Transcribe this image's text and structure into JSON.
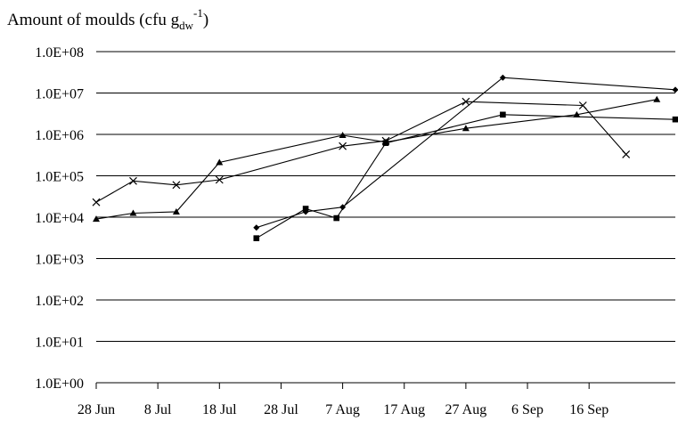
{
  "chart_data": {
    "type": "line",
    "title": "",
    "ylabel": "Amount of moulds (cfu g",
    "ylabel_sub": "dw",
    "ylabel_sup": "-1",
    "ylabel_close": ")",
    "yscale": "log",
    "ylim": [
      1,
      100000000
    ],
    "xlim": [
      "2007-06-28",
      "2007-09-30"
    ],
    "grid": "horizontal",
    "y_ticks": [
      {
        "value": 1,
        "label": "1.0E+00"
      },
      {
        "value": 10,
        "label": "1.0E+01"
      },
      {
        "value": 100,
        "label": "1.0E+02"
      },
      {
        "value": 1000,
        "label": "1.0E+03"
      },
      {
        "value": 10000,
        "label": "1.0E+04"
      },
      {
        "value": 100000,
        "label": "1.0E+05"
      },
      {
        "value": 1000000,
        "label": "1.0E+06"
      },
      {
        "value": 10000000,
        "label": "1.0E+07"
      },
      {
        "value": 100000000,
        "label": "1.0E+08"
      }
    ],
    "x_ticks": [
      {
        "value": "2007-06-28",
        "label": "28 Jun"
      },
      {
        "value": "2007-07-08",
        "label": "8 Jul"
      },
      {
        "value": "2007-07-18",
        "label": "18 Jul"
      },
      {
        "value": "2007-07-28",
        "label": "28 Jul"
      },
      {
        "value": "2007-08-07",
        "label": "7 Aug"
      },
      {
        "value": "2007-08-17",
        "label": "17 Aug"
      },
      {
        "value": "2007-08-27",
        "label": "27 Aug"
      },
      {
        "value": "2007-09-06",
        "label": "6 Sep"
      },
      {
        "value": "2007-09-16",
        "label": "16 Sep"
      }
    ],
    "series": [
      {
        "marker": "diamond",
        "points": [
          {
            "x": "2007-07-24",
            "y": 5600
          },
          {
            "x": "2007-08-01",
            "y": 13500
          },
          {
            "x": "2007-08-07",
            "y": 17500
          },
          {
            "x": "2007-09-02",
            "y": 23500000
          },
          {
            "x": "2007-09-30",
            "y": 12000000
          }
        ]
      },
      {
        "marker": "square",
        "points": [
          {
            "x": "2007-07-24",
            "y": 3100
          },
          {
            "x": "2007-08-01",
            "y": 16000
          },
          {
            "x": "2007-08-06",
            "y": 9500
          },
          {
            "x": "2007-08-14",
            "y": 620000
          },
          {
            "x": "2007-09-02",
            "y": 3000000
          },
          {
            "x": "2007-09-30",
            "y": 2300000
          }
        ]
      },
      {
        "marker": "triangle",
        "points": [
          {
            "x": "2007-06-28",
            "y": 9000
          },
          {
            "x": "2007-07-04",
            "y": 12500
          },
          {
            "x": "2007-07-11",
            "y": 13500
          },
          {
            "x": "2007-07-18",
            "y": 210000
          },
          {
            "x": "2007-08-07",
            "y": 950000
          },
          {
            "x": "2007-08-14",
            "y": 650000
          },
          {
            "x": "2007-08-27",
            "y": 1400000
          },
          {
            "x": "2007-09-14",
            "y": 3000000
          },
          {
            "x": "2007-09-27",
            "y": 7000000
          }
        ]
      },
      {
        "marker": "x",
        "points": [
          {
            "x": "2007-06-28",
            "y": 23000
          },
          {
            "x": "2007-07-04",
            "y": 75000
          },
          {
            "x": "2007-07-11",
            "y": 60000
          },
          {
            "x": "2007-07-18",
            "y": 80000
          },
          {
            "x": "2007-08-07",
            "y": 520000
          },
          {
            "x": "2007-08-14",
            "y": 700000
          },
          {
            "x": "2007-08-27",
            "y": 6200000
          },
          {
            "x": "2007-09-15",
            "y": 5000000
          },
          {
            "x": "2007-09-22",
            "y": 330000
          }
        ]
      }
    ]
  }
}
